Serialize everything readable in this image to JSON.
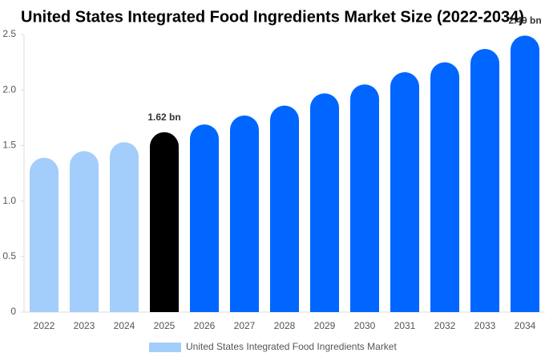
{
  "chart_data": {
    "type": "bar",
    "title": "United States Integrated Food Ingredients Market Size (2022-2034)",
    "categories": [
      "2022",
      "2023",
      "2024",
      "2025",
      "2026",
      "2027",
      "2028",
      "2029",
      "2030",
      "2031",
      "2032",
      "2033",
      "2034"
    ],
    "series": [
      {
        "name": "United States Integrated Food Ingredients Market",
        "color": "#a3cdfb",
        "values": [
          1.39,
          1.45,
          1.53,
          1.62,
          1.69,
          1.77,
          1.86,
          1.97,
          2.05,
          2.16,
          2.25,
          2.37,
          2.49
        ],
        "value_labels": [
          null,
          null,
          null,
          "1.62 bn",
          null,
          null,
          null,
          null,
          null,
          null,
          null,
          null,
          "2.49 bn"
        ],
        "bar_colors": [
          "#a3cdfb",
          "#a3cdfb",
          "#a3cdfb",
          "#000000",
          "#0066ff",
          "#0066ff",
          "#0066ff",
          "#0066ff",
          "#0066ff",
          "#0066ff",
          "#0066ff",
          "#0066ff",
          "#0066ff"
        ]
      }
    ],
    "ylim": [
      0,
      2.5
    ],
    "yticks": [
      0,
      0.5,
      {
        "value": 1,
        "label": "1.0"
      },
      1.5,
      {
        "value": 2,
        "label": "2.0"
      },
      2.5
    ],
    "grid": false
  }
}
